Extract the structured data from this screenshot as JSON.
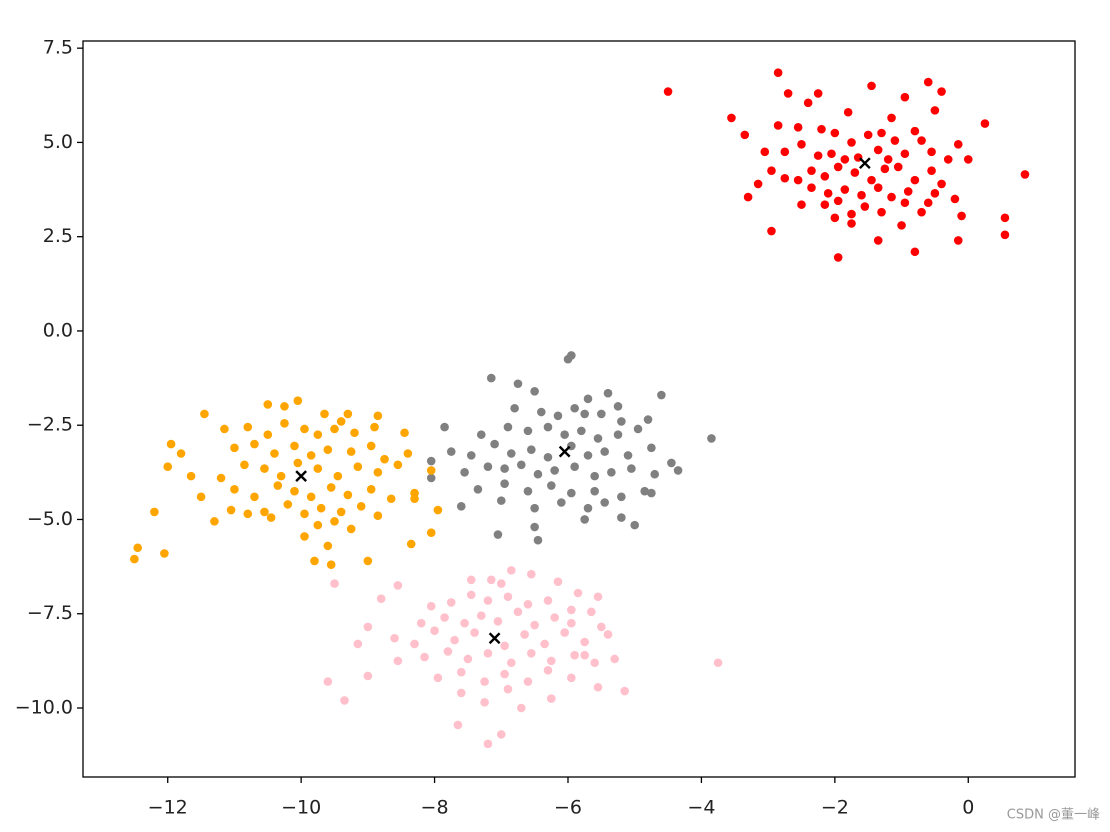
{
  "chart_data": {
    "type": "scatter",
    "xlim": [
      -13.27,
      1.6
    ],
    "ylim": [
      -11.83,
      7.69
    ],
    "xticks": [
      {
        "value": -12,
        "label": "−12"
      },
      {
        "value": -10,
        "label": "−10"
      },
      {
        "value": -8,
        "label": "−8"
      },
      {
        "value": -6,
        "label": "−6"
      },
      {
        "value": -4,
        "label": "−4"
      },
      {
        "value": -2,
        "label": "−2"
      },
      0
    ],
    "yticks": [
      {
        "value": 7.5,
        "label": "7.5"
      },
      {
        "value": 5,
        "label": "5.0"
      },
      {
        "value": 2.5,
        "label": "2.5"
      },
      {
        "value": 0,
        "label": "0.0"
      },
      {
        "value": -2.5,
        "label": "−2.5"
      },
      {
        "value": -5,
        "label": "−5.0"
      },
      {
        "value": -7.5,
        "label": "−7.5"
      },
      {
        "value": -10,
        "label": "−10.0"
      }
    ],
    "grid": false,
    "series": [
      {
        "color": "#ff0000",
        "marker": "o",
        "x": [
          -4.5,
          -2.85,
          -2.7,
          -2.25,
          -2.4,
          -1.8,
          -1.45,
          -0.95,
          -0.6,
          -0.4,
          -0.5,
          -1.15,
          -3.55,
          -3.35,
          -2.85,
          -2.55,
          -2.2,
          -2.0,
          -1.75,
          -1.5,
          -1.3,
          -1.1,
          -0.8,
          -0.7,
          0.25,
          -0.15,
          -3.05,
          -2.75,
          -2.5,
          -2.25,
          -2.05,
          -1.85,
          -1.65,
          -1.35,
          -1.2,
          -0.95,
          -0.55,
          -0.3,
          0.0,
          -2.95,
          -2.35,
          -2.15,
          -1.95,
          -1.7,
          -1.45,
          -1.25,
          -1.05,
          -0.8,
          -0.55,
          -0.4,
          0.85,
          -3.15,
          -2.75,
          -2.55,
          -2.35,
          -2.1,
          -1.85,
          -1.6,
          -1.35,
          -1.15,
          -0.9,
          -0.6,
          -3.3,
          -2.5,
          -2.15,
          -1.95,
          -1.75,
          -1.55,
          -1.3,
          -0.95,
          -0.7,
          -0.2,
          -0.1,
          0.55,
          -2.0,
          -1.75,
          -1.35,
          -1.0,
          -2.95,
          -0.8,
          -0.15,
          0.55,
          -1.95,
          -0.5
        ],
        "y": [
          6.35,
          6.85,
          6.3,
          6.3,
          6.05,
          5.8,
          6.5,
          6.2,
          6.6,
          6.35,
          5.85,
          5.65,
          5.65,
          5.2,
          5.45,
          5.4,
          5.35,
          5.25,
          5.0,
          5.2,
          5.25,
          5.05,
          5.3,
          5.05,
          5.5,
          4.95,
          4.75,
          4.75,
          4.95,
          4.65,
          4.7,
          4.55,
          4.6,
          4.8,
          4.55,
          4.7,
          4.75,
          4.55,
          4.55,
          4.25,
          4.25,
          4.1,
          4.35,
          4.2,
          4.0,
          4.3,
          4.35,
          4.0,
          4.25,
          3.9,
          4.15,
          3.9,
          4.05,
          4.0,
          3.8,
          3.65,
          3.75,
          3.6,
          3.8,
          3.55,
          3.7,
          3.4,
          3.55,
          3.35,
          3.35,
          3.45,
          3.1,
          3.3,
          3.15,
          3.4,
          3.15,
          3.5,
          3.05,
          3.0,
          3.0,
          2.85,
          2.4,
          2.8,
          2.65,
          2.1,
          2.4,
          2.55,
          1.95,
          3.65
        ]
      },
      {
        "color": "#808080",
        "marker": "o",
        "x": [
          -5.95,
          -6.0,
          -7.15,
          -6.75,
          -6.5,
          -5.7,
          -5.4,
          -5.25,
          -4.6,
          -6.8,
          -6.4,
          -6.15,
          -5.9,
          -5.75,
          -5.5,
          -5.2,
          -4.8,
          -7.85,
          -7.3,
          -6.9,
          -6.6,
          -6.3,
          -6.05,
          -5.8,
          -5.55,
          -5.25,
          -4.95,
          -3.85,
          -7.75,
          -7.45,
          -7.1,
          -6.85,
          -6.55,
          -6.3,
          -5.95,
          -5.7,
          -5.45,
          -5.1,
          -4.75,
          -4.45,
          -8.05,
          -7.55,
          -7.2,
          -6.95,
          -6.7,
          -6.45,
          -6.2,
          -5.9,
          -5.6,
          -5.35,
          -5.05,
          -4.7,
          -4.35,
          -8.05,
          -7.35,
          -6.95,
          -6.6,
          -6.25,
          -5.95,
          -5.6,
          -5.2,
          -4.85,
          -7.6,
          -7.0,
          -6.5,
          -6.1,
          -5.7,
          -5.45,
          -4.75,
          -5.2,
          -5.0,
          -6.5,
          -7.05,
          -6.45,
          -5.75
        ],
        "y": [
          -0.65,
          -0.75,
          -1.25,
          -1.4,
          -1.6,
          -1.8,
          -1.65,
          -2.0,
          -1.7,
          -2.05,
          -2.15,
          -2.25,
          -2.05,
          -2.2,
          -2.2,
          -2.4,
          -2.35,
          -2.55,
          -2.75,
          -2.55,
          -2.65,
          -2.55,
          -2.75,
          -2.65,
          -2.85,
          -2.75,
          -2.6,
          -2.85,
          -3.2,
          -3.3,
          -3.0,
          -3.25,
          -3.15,
          -3.35,
          -3.05,
          -3.3,
          -3.2,
          -3.3,
          -3.1,
          -3.5,
          -3.45,
          -3.75,
          -3.6,
          -3.65,
          -3.55,
          -3.8,
          -3.7,
          -3.6,
          -3.85,
          -3.75,
          -3.65,
          -3.8,
          -3.7,
          -3.9,
          -4.2,
          -4.05,
          -4.25,
          -4.1,
          -4.3,
          -4.25,
          -4.4,
          -4.25,
          -4.65,
          -4.5,
          -4.7,
          -4.55,
          -4.7,
          -4.55,
          -4.3,
          -4.95,
          -5.15,
          -5.2,
          -5.4,
          -5.55,
          -5.0
        ]
      },
      {
        "color": "#ffa500",
        "marker": "o",
        "x": [
          -10.05,
          -10.25,
          -10.5,
          -11.45,
          -9.65,
          -9.3,
          -9.4,
          -8.85,
          -11.15,
          -10.8,
          -10.5,
          -10.25,
          -9.95,
          -9.75,
          -9.5,
          -9.2,
          -8.9,
          -8.45,
          -11.95,
          -11.8,
          -11.0,
          -10.7,
          -10.4,
          -10.1,
          -9.85,
          -9.6,
          -9.25,
          -8.95,
          -8.75,
          -8.4,
          -12.0,
          -11.65,
          -11.2,
          -10.85,
          -10.55,
          -10.3,
          -10.05,
          -9.75,
          -9.45,
          -9.15,
          -8.85,
          -8.55,
          -8.05,
          -11.5,
          -11.0,
          -10.7,
          -10.35,
          -10.1,
          -9.85,
          -9.55,
          -9.3,
          -8.95,
          -8.65,
          -8.3,
          -12.2,
          -11.05,
          -10.8,
          -10.55,
          -10.2,
          -9.95,
          -9.7,
          -9.4,
          -9.1,
          -8.85,
          -8.3,
          -7.95,
          -10.45,
          -9.75,
          -9.5,
          -9.25,
          -9.95,
          -8.05,
          -8.35,
          -9.6,
          -12.5,
          -12.45,
          -12.05,
          -9.8,
          -9.55,
          -9.0,
          -11.3
        ],
        "y": [
          -1.85,
          -2.0,
          -1.95,
          -2.2,
          -2.2,
          -2.2,
          -2.4,
          -2.25,
          -2.6,
          -2.55,
          -2.75,
          -2.45,
          -2.6,
          -2.75,
          -2.6,
          -2.7,
          -2.55,
          -2.7,
          -3.0,
          -3.25,
          -3.1,
          -3.0,
          -3.25,
          -3.05,
          -3.3,
          -3.15,
          -3.2,
          -3.05,
          -3.4,
          -3.25,
          -3.6,
          -3.85,
          -3.9,
          -3.55,
          -3.65,
          -3.85,
          -3.5,
          -3.65,
          -3.85,
          -3.6,
          -3.75,
          -3.55,
          -3.7,
          -4.4,
          -4.2,
          -4.4,
          -4.1,
          -4.25,
          -4.4,
          -4.15,
          -4.35,
          -4.2,
          -4.45,
          -4.3,
          -4.8,
          -4.75,
          -4.85,
          -4.8,
          -4.6,
          -4.85,
          -4.7,
          -4.8,
          -4.65,
          -4.9,
          -4.45,
          -4.75,
          -4.95,
          -5.15,
          -5.05,
          -5.25,
          -5.45,
          -5.35,
          -5.65,
          -5.7,
          -6.05,
          -5.75,
          -5.9,
          -6.1,
          -6.2,
          -6.1,
          -5.05
        ]
      },
      {
        "color": "#ffc0cb",
        "marker": "o",
        "x": [
          -9.5,
          -8.55,
          -6.85,
          -7.15,
          -7.45,
          -7.0,
          -6.55,
          -6.15,
          -5.85,
          -8.8,
          -8.05,
          -7.75,
          -7.45,
          -7.2,
          -6.9,
          -6.6,
          -6.3,
          -5.95,
          -5.55,
          -5.65,
          -9.0,
          -8.2,
          -7.85,
          -7.55,
          -7.3,
          -7.05,
          -6.75,
          -6.5,
          -6.2,
          -5.95,
          -5.5,
          -9.15,
          -8.6,
          -8.3,
          -8.0,
          -7.7,
          -7.4,
          -6.95,
          -6.65,
          -6.35,
          -6.05,
          -5.75,
          -5.4,
          -8.55,
          -8.15,
          -7.8,
          -7.5,
          -7.2,
          -6.85,
          -6.55,
          -6.25,
          -5.9,
          -5.6,
          -5.3,
          -3.75,
          -9.6,
          -9.0,
          -7.95,
          -7.6,
          -7.25,
          -6.95,
          -6.6,
          -6.3,
          -5.95,
          -5.55,
          -5.15,
          -9.35,
          -7.6,
          -7.25,
          -6.9,
          -6.7,
          -7.65,
          -7.0,
          -7.2,
          -6.25,
          -5.75
        ],
        "y": [
          -6.7,
          -6.75,
          -6.35,
          -6.6,
          -6.6,
          -6.7,
          -6.45,
          -6.65,
          -6.95,
          -7.1,
          -7.3,
          -7.2,
          -7.0,
          -7.15,
          -7.05,
          -7.25,
          -7.15,
          -7.4,
          -7.05,
          -7.45,
          -7.85,
          -7.75,
          -7.6,
          -7.75,
          -7.55,
          -7.7,
          -7.45,
          -7.8,
          -7.6,
          -7.75,
          -7.85,
          -8.3,
          -8.15,
          -8.3,
          -7.95,
          -8.2,
          -8.0,
          -8.35,
          -8.05,
          -8.3,
          -8.0,
          -8.25,
          -8.05,
          -8.75,
          -8.65,
          -8.5,
          -8.7,
          -8.55,
          -8.8,
          -8.55,
          -8.75,
          -8.6,
          -8.8,
          -8.7,
          -8.8,
          -9.3,
          -9.15,
          -9.2,
          -9.05,
          -9.3,
          -9.1,
          -9.3,
          -9.0,
          -9.2,
          -9.45,
          -9.55,
          -9.8,
          -9.6,
          -9.85,
          -9.5,
          -10.0,
          -10.45,
          -10.7,
          -10.95,
          -9.75,
          -8.6
        ]
      },
      {
        "color": "#000000",
        "marker": "x",
        "x": [
          -1.55,
          -6.05,
          -10.0,
          -7.1
        ],
        "y": [
          4.45,
          -3.2,
          -3.85,
          -8.15
        ]
      }
    ]
  },
  "watermark": "CSDN @董一峰"
}
